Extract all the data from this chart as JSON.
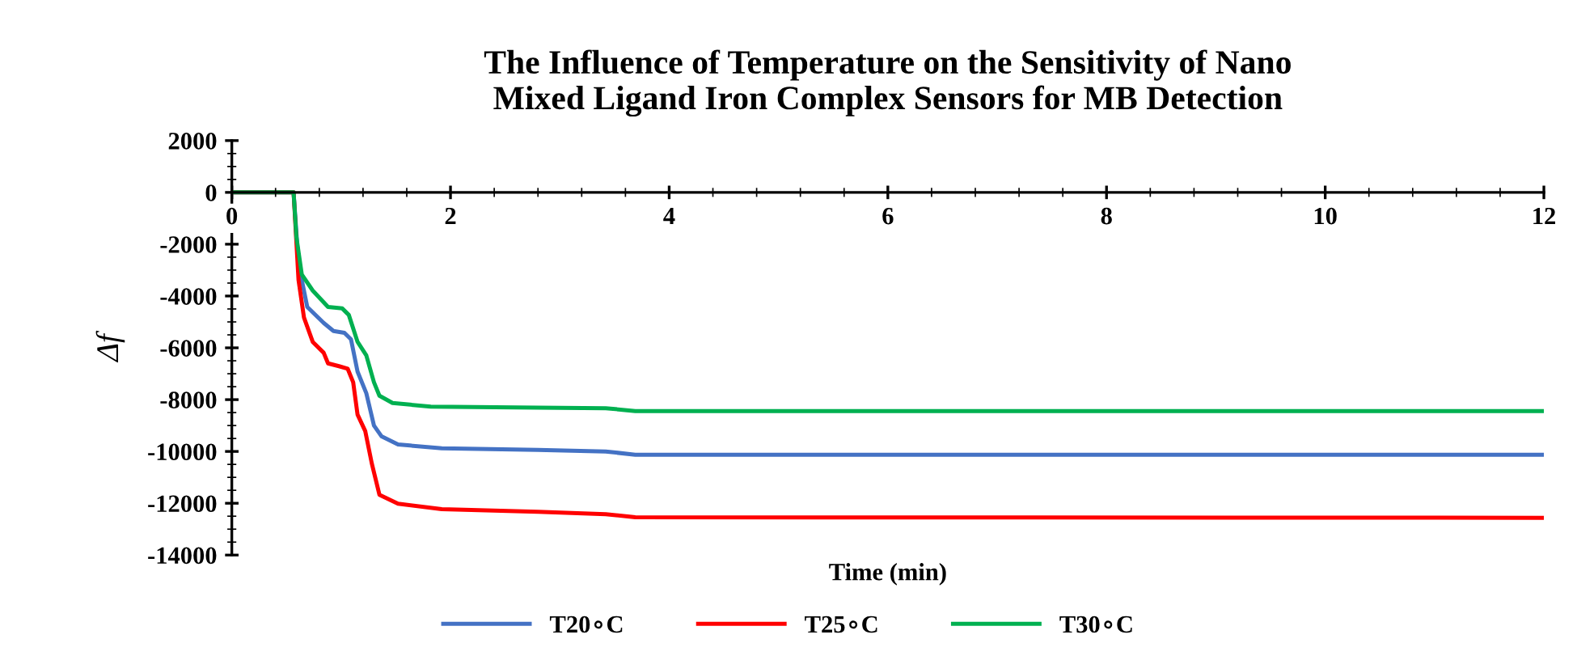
{
  "chart_data": {
    "type": "line",
    "title": "The Influence of Temperature on the Sensitivity of Nano\nMixed Ligand Iron Complex Sensors for MB Detection",
    "xlabel": "Time (min)",
    "ylabel": "Δf",
    "xlim": [
      0,
      12
    ],
    "ylim": [
      -14000,
      2000
    ],
    "xticks": [
      0,
      2,
      4,
      6,
      8,
      10,
      12
    ],
    "yticks": [
      -14000,
      -12000,
      -10000,
      -8000,
      -6000,
      -4000,
      -2000,
      0,
      2000
    ],
    "grid": false,
    "legend": "bottom",
    "marker": "none",
    "line_style": "solid",
    "series": [
      {
        "name": "T20∘C",
        "color": "#4472c4",
        "x": [
          0,
          0.565,
          0.61,
          0.69,
          0.84,
          0.93,
          1.03,
          1.09,
          1.15,
          1.23,
          1.3,
          1.37,
          1.52,
          1.92,
          2.8,
          3.42,
          3.69,
          12
        ],
        "values": [
          0,
          0,
          -2750,
          -4420,
          -5040,
          -5350,
          -5420,
          -5670,
          -6920,
          -7750,
          -9000,
          -9420,
          -9730,
          -9880,
          -9940,
          -10000,
          -10130,
          -10130
        ]
      },
      {
        "name": "T25∘C",
        "color": "#ff0000",
        "x": [
          0,
          0.565,
          0.61,
          0.66,
          0.74,
          0.84,
          0.88,
          0.98,
          1.06,
          1.11,
          1.15,
          1.22,
          1.28,
          1.35,
          1.52,
          1.92,
          2.8,
          3.42,
          3.69,
          12
        ],
        "values": [
          0,
          0,
          -3380,
          -4830,
          -5770,
          -6190,
          -6600,
          -6710,
          -6810,
          -7330,
          -8580,
          -9210,
          -10460,
          -11670,
          -12020,
          -12230,
          -12330,
          -12420,
          -12540,
          -12560
        ]
      },
      {
        "name": "T30∘C",
        "color": "#00b050",
        "x": [
          0,
          0.565,
          0.59,
          0.64,
          0.74,
          0.88,
          1.01,
          1.07,
          1.15,
          1.23,
          1.3,
          1.35,
          1.47,
          1.82,
          2.8,
          3.42,
          3.69,
          12
        ],
        "values": [
          0,
          0,
          -1700,
          -3170,
          -3790,
          -4420,
          -4480,
          -4730,
          -5770,
          -6290,
          -7330,
          -7850,
          -8130,
          -8270,
          -8310,
          -8330,
          -8440,
          -8440
        ]
      }
    ]
  }
}
